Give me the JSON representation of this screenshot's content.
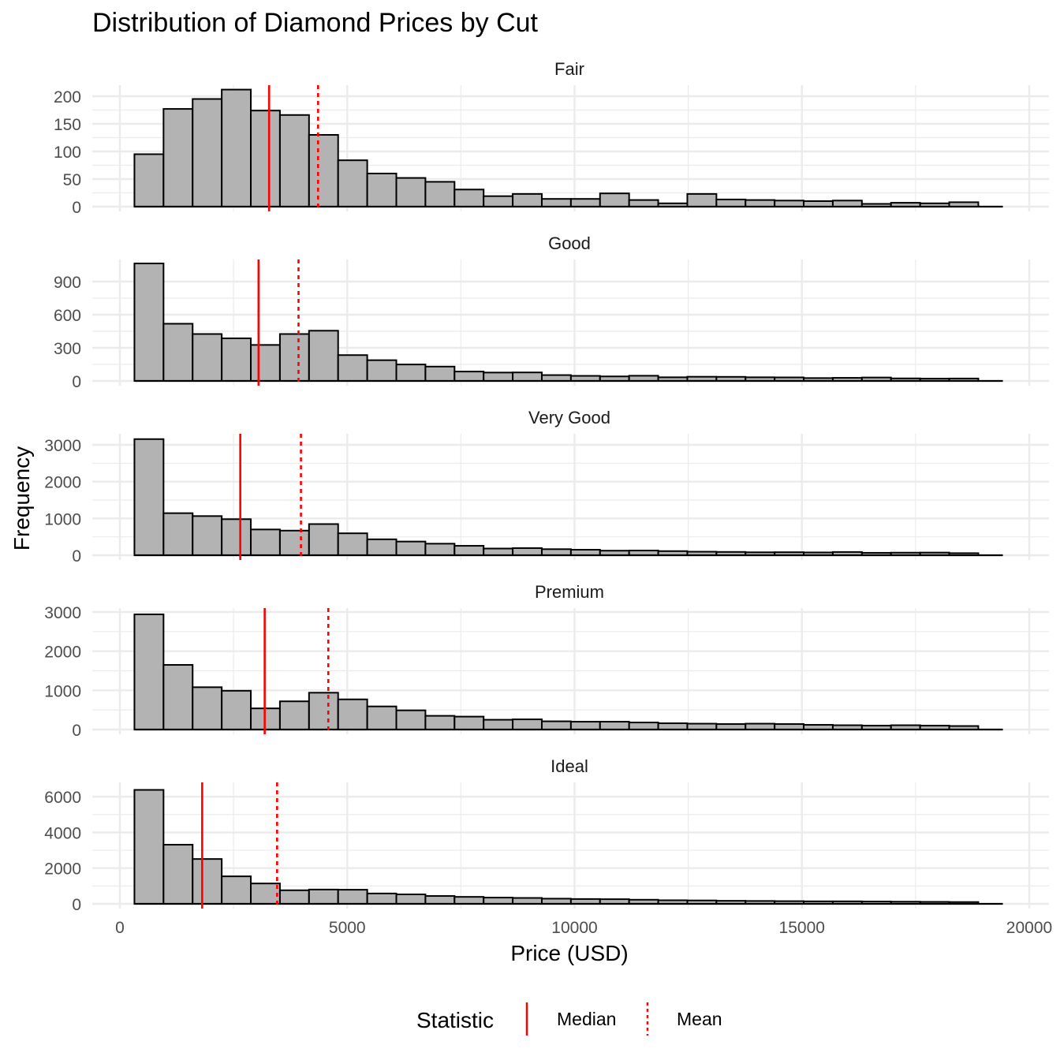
{
  "chart_data": {
    "type": "bar",
    "title": "Distribution of Diamond Prices by Cut",
    "xlabel": "Price (USD)",
    "ylabel": "Frequency",
    "xlim": [
      0,
      20000
    ],
    "x_ticks": [
      0,
      5000,
      10000,
      15000,
      20000
    ],
    "x_tick_labels": [
      "0",
      "5000",
      "10000",
      "15000",
      "20000"
    ],
    "bin_centers": [
      640,
      1280,
      1920,
      2560,
      3200,
      3840,
      4480,
      5120,
      5760,
      6400,
      7040,
      7680,
      8320,
      8960,
      9600,
      10240,
      10880,
      11520,
      12160,
      12800,
      13440,
      14080,
      14720,
      15360,
      16000,
      16640,
      17280,
      17920,
      18560
    ],
    "bin_width": 640,
    "grid": true,
    "legend": {
      "title": "Statistic",
      "position": "bottom",
      "items": [
        {
          "label": "Median",
          "style": "solid"
        },
        {
          "label": "Mean",
          "style": "dotted"
        }
      ]
    },
    "colors": {
      "bar_fill": "#b3b3b3",
      "bar_stroke": "#000000",
      "stat_line": "#ff0000",
      "grid": "#ebebeb"
    },
    "panels": [
      {
        "name": "Fair",
        "ylim": [
          0,
          220
        ],
        "y_ticks": [
          0,
          50,
          100,
          150,
          200
        ],
        "y_tick_labels": [
          "0",
          "50",
          "100",
          "150",
          "200"
        ],
        "median": 3282,
        "mean": 4359,
        "values": [
          95,
          177,
          195,
          212,
          174,
          166,
          130,
          84,
          60,
          52,
          45,
          31,
          19,
          23,
          14,
          14,
          24,
          12,
          6,
          23,
          13,
          12,
          11,
          10,
          11,
          5,
          7,
          6,
          8
        ]
      },
      {
        "name": "Good",
        "ylim": [
          0,
          1100
        ],
        "y_ticks": [
          0,
          300,
          600,
          900
        ],
        "y_tick_labels": [
          "0",
          "300",
          "600",
          "900"
        ],
        "median": 3050,
        "mean": 3929,
        "values": [
          1064,
          518,
          425,
          386,
          326,
          425,
          455,
          234,
          188,
          149,
          130,
          85,
          76,
          77,
          53,
          46,
          41,
          47,
          33,
          38,
          37,
          33,
          32,
          26,
          28,
          31,
          23,
          21,
          22
        ]
      },
      {
        "name": "Very Good",
        "ylim": [
          0,
          3300
        ],
        "y_ticks": [
          0,
          1000,
          2000,
          3000
        ],
        "y_tick_labels": [
          "0",
          "1000",
          "2000",
          "3000"
        ],
        "median": 2648,
        "mean": 3982,
        "values": [
          3155,
          1143,
          1064,
          980,
          700,
          669,
          847,
          596,
          433,
          372,
          314,
          256,
          182,
          194,
          165,
          150,
          124,
          128,
          112,
          96,
          90,
          80,
          82,
          76,
          88,
          66,
          70,
          72,
          56
        ]
      },
      {
        "name": "Premium",
        "ylim": [
          0,
          3100
        ],
        "y_ticks": [
          0,
          1000,
          2000,
          3000
        ],
        "y_tick_labels": [
          "0",
          "1000",
          "2000",
          "3000"
        ],
        "median": 3185,
        "mean": 4584,
        "values": [
          2940,
          1650,
          1080,
          990,
          540,
          720,
          940,
          770,
          590,
          490,
          350,
          330,
          250,
          260,
          210,
          200,
          200,
          180,
          160,
          150,
          140,
          150,
          140,
          120,
          110,
          100,
          110,
          100,
          90
        ]
      },
      {
        "name": "Ideal",
        "ylim": [
          0,
          6800
        ],
        "y_ticks": [
          0,
          2000,
          4000,
          6000
        ],
        "y_tick_labels": [
          "0",
          "2000",
          "4000",
          "6000"
        ],
        "median": 1810,
        "mean": 3458,
        "values": [
          6380,
          3310,
          2510,
          1540,
          1140,
          760,
          800,
          790,
          580,
          530,
          440,
          390,
          350,
          330,
          290,
          270,
          260,
          230,
          200,
          190,
          170,
          160,
          150,
          140,
          140,
          130,
          120,
          110,
          100
        ]
      }
    ]
  }
}
